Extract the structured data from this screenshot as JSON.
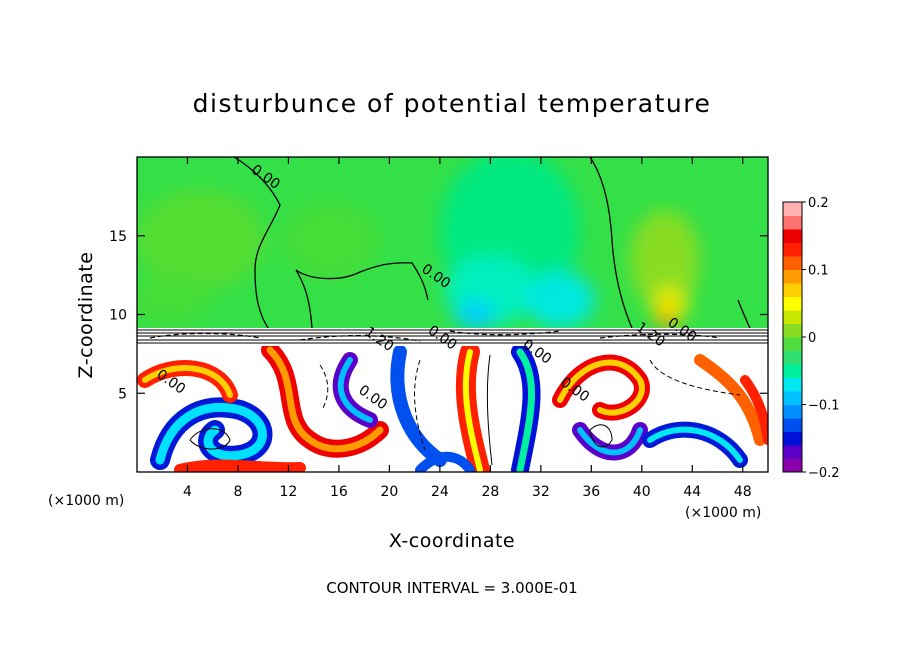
{
  "chart_data": {
    "type": "heatmap",
    "title": "disturbunce of potential temperature",
    "xlabel": "X-coordinate",
    "ylabel": "Z-coordinate",
    "x_unit_left": "(×1000 m)",
    "x_unit_right": "(×1000 m)",
    "xlim": [
      0,
      50
    ],
    "ylim": [
      0,
      20
    ],
    "x_ticks": [
      4,
      8,
      12,
      16,
      20,
      24,
      28,
      32,
      36,
      40,
      44,
      48
    ],
    "y_ticks": [
      5,
      10,
      15
    ],
    "colorbar": {
      "vmin": -0.2,
      "vmax": 0.2,
      "ticks": [
        0.2,
        0.1,
        0,
        -0.1,
        -0.2
      ],
      "tick_labels": [
        "0.2",
        "0.1",
        "0",
        "−0.1",
        "−0.2"
      ],
      "colors": [
        "#8b00aa",
        "#5a00c8",
        "#0010d8",
        "#0050f0",
        "#0090ff",
        "#00c0ff",
        "#00e8f0",
        "#00f0a0",
        "#30e070",
        "#50dd40",
        "#88dd20",
        "#c8e800",
        "#ffff00",
        "#ffd000",
        "#ff9a00",
        "#ff6000",
        "#ff2000",
        "#ee0000",
        "#ff7070",
        "#ffb0b0"
      ]
    },
    "contour_interval_text": "CONTOUR INTERVAL = 3.000E-01",
    "contour_labels": [
      {
        "text": "0.00",
        "x": 10,
        "z": 18.5
      },
      {
        "text": "0.00",
        "x": 23.5,
        "z": 12.2
      },
      {
        "text": "1.20",
        "x": 19,
        "z": 8.2
      },
      {
        "text": "0.00",
        "x": 24,
        "z": 8.3
      },
      {
        "text": "0.00",
        "x": 31.5,
        "z": 7.4
      },
      {
        "text": "0.00",
        "x": 18.5,
        "z": 4.5
      },
      {
        "text": "0.00",
        "x": 34.5,
        "z": 5
      },
      {
        "text": "1.20",
        "x": 40.5,
        "z": 8.5
      },
      {
        "text": "0.00",
        "x": 43,
        "z": 8.8
      },
      {
        "text": "0.00",
        "x": 2.5,
        "z": 5.5
      }
    ]
  }
}
